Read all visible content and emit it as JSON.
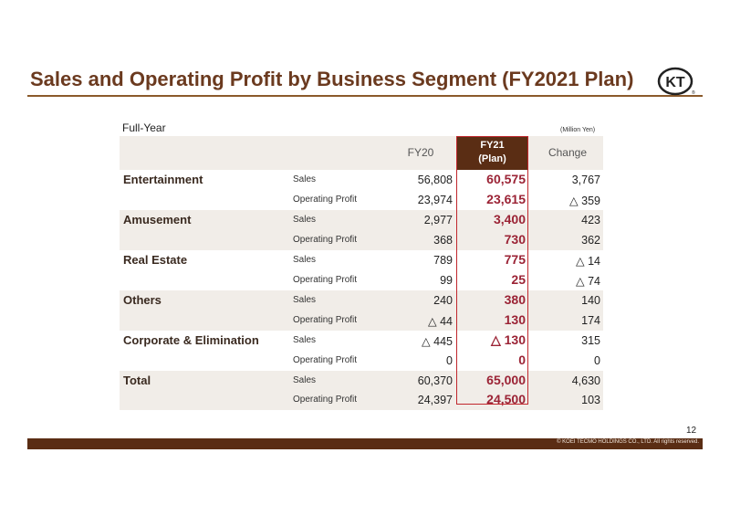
{
  "title": "Sales and Operating Profit by Business Segment (FY2021 Plan)",
  "logo_text": "KT",
  "period_label": "Full-Year",
  "unit_label": "(Million Yen)",
  "header": {
    "fy20": "FY20",
    "plan_line1": "FY21",
    "plan_line2": "(Plan)",
    "change": "Change"
  },
  "rows": [
    {
      "segment": "Entertainment",
      "metric": "Sales",
      "fy20": "56,808",
      "plan": "60,575",
      "change": "3,767"
    },
    {
      "segment": "",
      "metric": "Operating Profit",
      "fy20": "23,974",
      "plan": "23,615",
      "change": "△ 359"
    },
    {
      "segment": "Amusement",
      "metric": "Sales",
      "fy20": "2,977",
      "plan": "3,400",
      "change": "423"
    },
    {
      "segment": "",
      "metric": "Operating Profit",
      "fy20": "368",
      "plan": "730",
      "change": "362"
    },
    {
      "segment": "Real Estate",
      "metric": "Sales",
      "fy20": "789",
      "plan": "775",
      "change": "△ 14"
    },
    {
      "segment": "",
      "metric": "Operating Profit",
      "fy20": "99",
      "plan": "25",
      "change": "△ 74"
    },
    {
      "segment": "Others",
      "metric": "Sales",
      "fy20": "240",
      "plan": "380",
      "change": "140"
    },
    {
      "segment": "",
      "metric": "Operating Profit",
      "fy20": "△ 44",
      "plan": "130",
      "change": "174"
    },
    {
      "segment": "Corporate & Elimination",
      "metric": "Sales",
      "fy20": "△ 445",
      "plan": "△ 130",
      "change": "315"
    },
    {
      "segment": "",
      "metric": "Operating Profit",
      "fy20": "0",
      "plan": "0",
      "change": "0"
    },
    {
      "segment": "Total",
      "metric": "Sales",
      "fy20": "60,370",
      "plan": "65,000",
      "change": "4,630"
    },
    {
      "segment": "",
      "metric": "Operating Profit",
      "fy20": "24,397",
      "plan": "24,500",
      "change": "103"
    }
  ],
  "page_number": "12",
  "copyright": "© KOEI TECMO HOLDINGS CO., LTD. All rights reserved.",
  "colors": {
    "brand_brown": "#5a2d14",
    "plan_red": "#9b2335",
    "shade": "#f1ede8"
  }
}
